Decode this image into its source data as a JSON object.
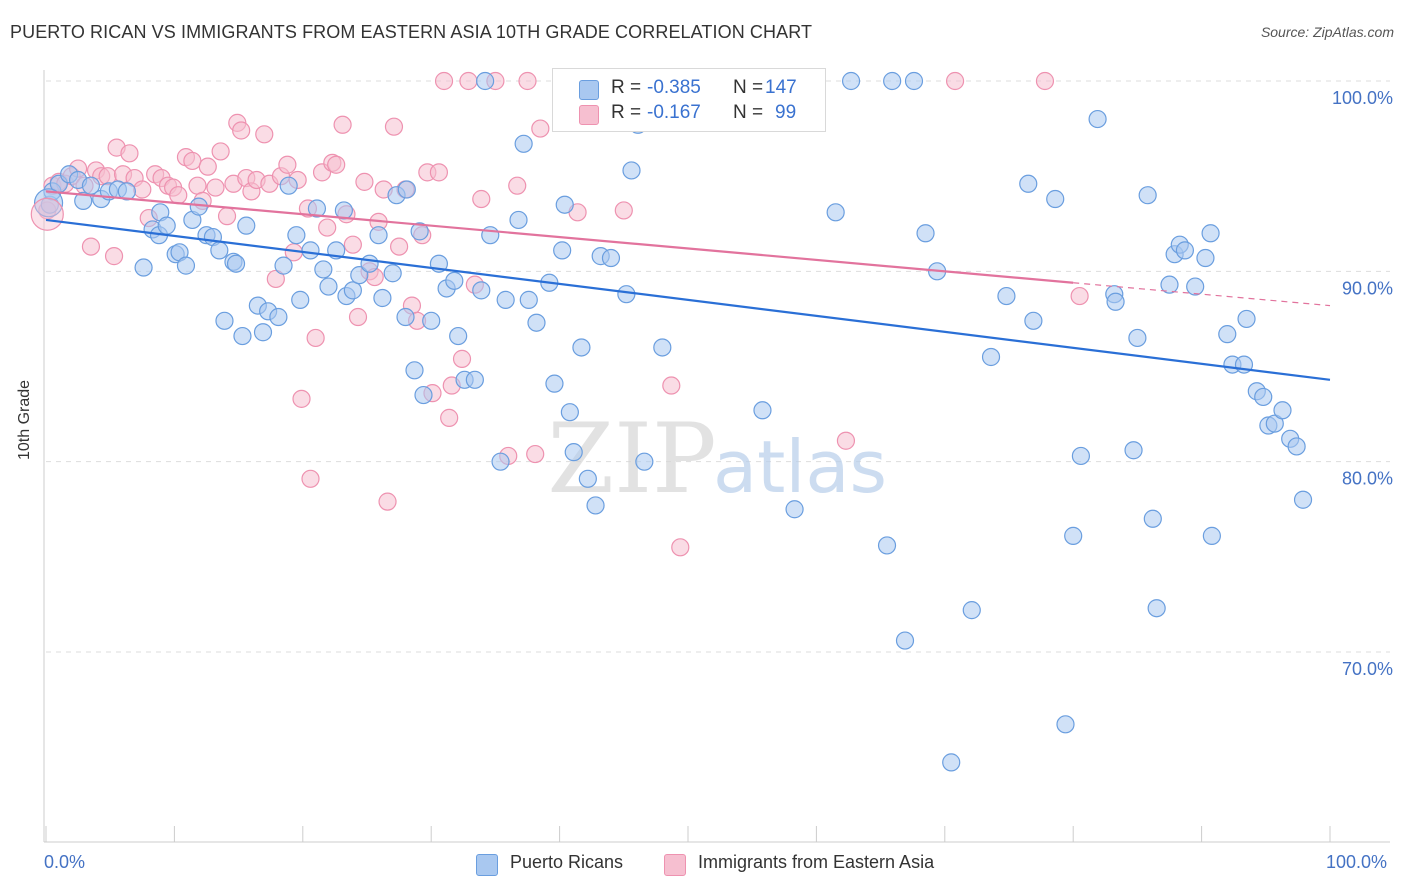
{
  "title": "PUERTO RICAN VS IMMIGRANTS FROM EASTERN ASIA 10TH GRADE CORRELATION CHART",
  "source": "Source: ZipAtlas.com",
  "watermark": {
    "zip": "ZIP",
    "atlas": "atlas"
  },
  "legend_box": {
    "rows": [
      {
        "r_label": "R =",
        "r_value": "-0.385",
        "n_label": "N =",
        "n_value": "147"
      },
      {
        "r_label": "R =",
        "r_value": "-0.167",
        "n_label": "N =",
        "n_value": "99"
      }
    ]
  },
  "bottom_legend": [
    "Puerto Ricans",
    "Immigrants from Eastern Asia"
  ],
  "x_axis_labels": {
    "left": "0.0%",
    "right": "100.0%"
  },
  "colors": {
    "blue_fill": "#a9c8f0",
    "blue_stroke": "#6a9edf",
    "blue_line": "#2a6fd6",
    "pink_fill": "#f6bfd0",
    "pink_stroke": "#ee92b0",
    "pink_line": "#e2739d",
    "value_text": "#3a72d0",
    "axis_text": "#4472c4"
  },
  "chart_data": {
    "type": "scatter",
    "title": "PUERTO RICAN VS IMMIGRANTS FROM EASTERN ASIA 10TH GRADE CORRELATION CHART",
    "xlabel": "",
    "ylabel": "10th Grade",
    "xlim": [
      0,
      100
    ],
    "ylim": [
      62,
      101.5
    ],
    "y_ticks": [
      {
        "value": 70,
        "label": "70.0%"
      },
      {
        "value": 80,
        "label": "80.0%"
      },
      {
        "value": 90,
        "label": "90.0%"
      },
      {
        "value": 100,
        "label": "100.0%"
      }
    ],
    "grid": true,
    "series": [
      {
        "name": "Puerto Ricans",
        "color": "#6a9edf",
        "r": -0.385,
        "n": 147,
        "trend": {
          "x0": 0,
          "y0": 92.7,
          "x1": 100,
          "y1": 84.3
        },
        "points": [
          [
            0.3,
            93.5
          ],
          [
            0.5,
            94.2
          ],
          [
            1.0,
            94.6
          ],
          [
            1.8,
            95.1
          ],
          [
            2.5,
            94.8
          ],
          [
            2.9,
            93.7
          ],
          [
            3.5,
            94.5
          ],
          [
            4.3,
            93.8
          ],
          [
            4.9,
            94.2
          ],
          [
            5.6,
            94.3
          ],
          [
            6.3,
            94.2
          ],
          [
            7.6,
            90.2
          ],
          [
            8.3,
            92.2
          ],
          [
            8.8,
            91.9
          ],
          [
            8.9,
            93.1
          ],
          [
            9.4,
            92.4
          ],
          [
            10.1,
            90.9
          ],
          [
            10.4,
            91.0
          ],
          [
            10.9,
            90.3
          ],
          [
            11.4,
            92.7
          ],
          [
            11.9,
            93.4
          ],
          [
            12.5,
            91.9
          ],
          [
            13.0,
            91.8
          ],
          [
            13.5,
            91.1
          ],
          [
            13.9,
            87.4
          ],
          [
            14.6,
            90.5
          ],
          [
            14.8,
            90.4
          ],
          [
            15.3,
            86.6
          ],
          [
            15.6,
            92.4
          ],
          [
            16.5,
            88.2
          ],
          [
            16.9,
            86.8
          ],
          [
            17.3,
            87.9
          ],
          [
            18.1,
            87.6
          ],
          [
            18.5,
            90.3
          ],
          [
            18.9,
            94.5
          ],
          [
            19.5,
            91.9
          ],
          [
            19.8,
            88.5
          ],
          [
            20.6,
            91.1
          ],
          [
            21.1,
            93.3
          ],
          [
            21.6,
            90.1
          ],
          [
            22.0,
            89.2
          ],
          [
            22.6,
            91.1
          ],
          [
            23.2,
            93.2
          ],
          [
            23.4,
            88.7
          ],
          [
            23.9,
            89.0
          ],
          [
            24.4,
            89.8
          ],
          [
            25.2,
            90.4
          ],
          [
            25.9,
            91.9
          ],
          [
            26.2,
            88.6
          ],
          [
            27.0,
            89.9
          ],
          [
            27.3,
            94.0
          ],
          [
            28.0,
            87.6
          ],
          [
            28.1,
            94.3
          ],
          [
            28.7,
            84.8
          ],
          [
            29.1,
            92.1
          ],
          [
            29.4,
            83.5
          ],
          [
            30.0,
            87.4
          ],
          [
            30.6,
            90.4
          ],
          [
            31.2,
            89.1
          ],
          [
            31.8,
            89.5
          ],
          [
            32.1,
            86.6
          ],
          [
            32.6,
            84.3
          ],
          [
            33.4,
            84.3
          ],
          [
            33.9,
            89.0
          ],
          [
            34.2,
            100.0
          ],
          [
            34.6,
            91.9
          ],
          [
            35.4,
            80.0
          ],
          [
            35.8,
            88.5
          ],
          [
            36.8,
            92.7
          ],
          [
            37.2,
            96.7
          ],
          [
            37.6,
            88.5
          ],
          [
            38.2,
            87.3
          ],
          [
            39.2,
            89.4
          ],
          [
            39.6,
            84.1
          ],
          [
            40.2,
            91.1
          ],
          [
            40.4,
            93.5
          ],
          [
            40.8,
            82.6
          ],
          [
            41.1,
            80.5
          ],
          [
            41.7,
            86.0
          ],
          [
            42.2,
            79.1
          ],
          [
            42.8,
            77.7
          ],
          [
            43.2,
            90.8
          ],
          [
            44.0,
            90.7
          ],
          [
            45.2,
            88.8
          ],
          [
            45.6,
            95.3
          ],
          [
            46.1,
            97.7
          ],
          [
            46.6,
            80.0
          ],
          [
            47.0,
            99.2
          ],
          [
            48.0,
            86.0
          ],
          [
            51.5,
            100.0
          ],
          [
            55.8,
            82.7
          ],
          [
            58.3,
            77.5
          ],
          [
            58.4,
            100.0
          ],
          [
            61.5,
            93.1
          ],
          [
            62.7,
            100.0
          ],
          [
            65.5,
            75.6
          ],
          [
            65.9,
            100.0
          ],
          [
            66.9,
            70.6
          ],
          [
            67.6,
            100.0
          ],
          [
            68.5,
            92.0
          ],
          [
            69.4,
            90.0
          ],
          [
            70.5,
            64.2
          ],
          [
            72.1,
            72.2
          ],
          [
            73.6,
            85.5
          ],
          [
            74.8,
            88.7
          ],
          [
            76.5,
            94.6
          ],
          [
            76.9,
            87.4
          ],
          [
            78.6,
            93.8
          ],
          [
            79.4,
            66.2
          ],
          [
            80.0,
            76.1
          ],
          [
            80.6,
            80.3
          ],
          [
            81.9,
            98.0
          ],
          [
            83.2,
            88.8
          ],
          [
            83.3,
            88.4
          ],
          [
            84.7,
            80.6
          ],
          [
            85.0,
            86.5
          ],
          [
            85.8,
            94.0
          ],
          [
            86.2,
            77.0
          ],
          [
            86.5,
            72.3
          ],
          [
            87.5,
            89.3
          ],
          [
            87.9,
            90.9
          ],
          [
            88.3,
            91.4
          ],
          [
            88.7,
            91.1
          ],
          [
            89.5,
            89.2
          ],
          [
            90.3,
            90.7
          ],
          [
            90.7,
            92.0
          ],
          [
            90.8,
            76.1
          ],
          [
            92.0,
            86.7
          ],
          [
            92.4,
            85.1
          ],
          [
            93.3,
            85.1
          ],
          [
            93.5,
            87.5
          ],
          [
            94.3,
            83.7
          ],
          [
            94.8,
            83.4
          ],
          [
            95.2,
            81.9
          ],
          [
            95.7,
            82.0
          ],
          [
            96.3,
            82.7
          ],
          [
            96.9,
            81.2
          ],
          [
            97.4,
            80.8
          ],
          [
            97.9,
            78.0
          ]
        ]
      },
      {
        "name": "Immigrants from Eastern Asia",
        "color": "#ee92b0",
        "r": -0.167,
        "n": 99,
        "trend": {
          "x0": 0,
          "y0": 94.2,
          "x1": 80,
          "y1": 89.4,
          "dash_to_x": 100,
          "dash_to_y": 88.2
        },
        "points": [
          [
            0.1,
            93.2
          ],
          [
            0.5,
            94.5
          ],
          [
            1.0,
            94.7
          ],
          [
            1.5,
            94.6
          ],
          [
            2.0,
            95.0
          ],
          [
            2.5,
            95.4
          ],
          [
            3.0,
            94.5
          ],
          [
            3.5,
            91.3
          ],
          [
            3.9,
            95.3
          ],
          [
            4.3,
            95.0
          ],
          [
            4.8,
            95.0
          ],
          [
            5.3,
            90.8
          ],
          [
            5.5,
            96.5
          ],
          [
            6.0,
            95.1
          ],
          [
            6.5,
            96.2
          ],
          [
            6.9,
            94.9
          ],
          [
            7.5,
            94.3
          ],
          [
            8.0,
            92.8
          ],
          [
            8.5,
            95.1
          ],
          [
            9.0,
            94.9
          ],
          [
            9.5,
            94.5
          ],
          [
            9.9,
            94.4
          ],
          [
            10.3,
            94.0
          ],
          [
            10.9,
            96.0
          ],
          [
            11.4,
            95.8
          ],
          [
            11.8,
            94.5
          ],
          [
            12.2,
            93.7
          ],
          [
            12.6,
            95.5
          ],
          [
            13.2,
            94.4
          ],
          [
            13.6,
            96.3
          ],
          [
            14.1,
            92.9
          ],
          [
            14.6,
            94.6
          ],
          [
            14.9,
            97.8
          ],
          [
            15.2,
            97.4
          ],
          [
            15.6,
            94.9
          ],
          [
            16.0,
            94.2
          ],
          [
            16.4,
            94.8
          ],
          [
            17.0,
            97.2
          ],
          [
            17.4,
            94.6
          ],
          [
            17.9,
            89.6
          ],
          [
            18.3,
            95.0
          ],
          [
            18.8,
            95.6
          ],
          [
            19.3,
            91.0
          ],
          [
            19.6,
            94.8
          ],
          [
            19.9,
            83.3
          ],
          [
            20.4,
            93.3
          ],
          [
            20.6,
            79.1
          ],
          [
            21.0,
            86.5
          ],
          [
            21.5,
            95.2
          ],
          [
            21.9,
            92.3
          ],
          [
            22.3,
            95.7
          ],
          [
            22.6,
            95.6
          ],
          [
            23.1,
            97.7
          ],
          [
            23.4,
            93.0
          ],
          [
            23.9,
            91.4
          ],
          [
            24.3,
            87.6
          ],
          [
            24.8,
            94.7
          ],
          [
            25.2,
            90.0
          ],
          [
            25.6,
            89.7
          ],
          [
            25.9,
            92.6
          ],
          [
            26.3,
            94.3
          ],
          [
            26.6,
            77.9
          ],
          [
            27.1,
            97.6
          ],
          [
            27.5,
            91.3
          ],
          [
            28.0,
            94.3
          ],
          [
            28.5,
            88.2
          ],
          [
            28.9,
            87.4
          ],
          [
            29.3,
            91.9
          ],
          [
            29.7,
            95.2
          ],
          [
            30.1,
            83.6
          ],
          [
            30.6,
            95.2
          ],
          [
            31.0,
            100.0
          ],
          [
            31.4,
            82.3
          ],
          [
            31.6,
            84.0
          ],
          [
            32.4,
            85.4
          ],
          [
            32.9,
            100.0
          ],
          [
            33.4,
            89.3
          ],
          [
            33.9,
            93.8
          ],
          [
            35.0,
            100.0
          ],
          [
            36.0,
            80.3
          ],
          [
            36.7,
            94.5
          ],
          [
            37.5,
            100.0
          ],
          [
            38.1,
            80.4
          ],
          [
            38.5,
            97.5
          ],
          [
            40.5,
            100.0
          ],
          [
            41.4,
            93.1
          ],
          [
            42.6,
            100.0
          ],
          [
            44.1,
            100.0
          ],
          [
            45.0,
            93.2
          ],
          [
            48.7,
            84.0
          ],
          [
            49.4,
            75.5
          ],
          [
            50.2,
            100.0
          ],
          [
            51.7,
            100.0
          ],
          [
            52.3,
            100.0
          ],
          [
            54.8,
            100.0
          ],
          [
            62.3,
            81.1
          ],
          [
            70.8,
            100.0
          ],
          [
            77.8,
            100.0
          ],
          [
            80.5,
            88.7
          ]
        ]
      }
    ]
  }
}
